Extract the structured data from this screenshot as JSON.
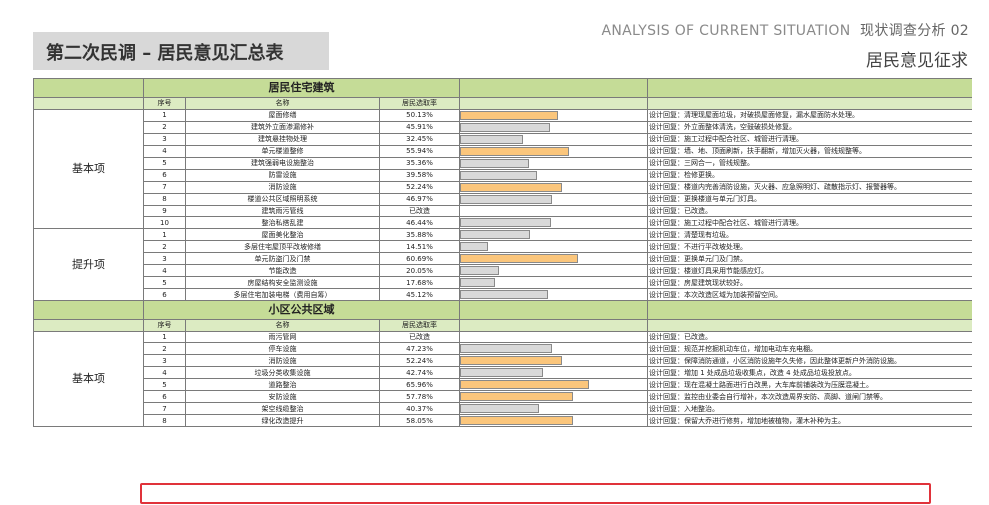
{
  "page": {
    "title": "第二次民调 – 居民意见汇总表",
    "header_en_prefix": "ANALYSIS OF CURRENT SITUATION",
    "header_en_suffix": "现状调查分析 02",
    "header_cn": "居民意见征求"
  },
  "colors": {
    "bar_high": "#fbc67c",
    "bar_low": "#d9d9d9",
    "section_bg": "#c5dc97",
    "highlight": "#e0323a"
  },
  "table": {
    "col_headers": {
      "index": "序号",
      "name": "名称",
      "rate": "居民选取率"
    },
    "sections": [
      {
        "title": "居民住宅建筑",
        "groups": [
          {
            "category": "基本项",
            "rows": [
              {
                "no": "1",
                "name": "屋面修缮",
                "rate_text": "50.13%",
                "rate": 50.13,
                "high": true,
                "note": "设计回复：清理现屋面垃圾，对破损屋面修复，漏水屋面防水处理。"
              },
              {
                "no": "2",
                "name": "建筑外立面渗漏修补",
                "rate_text": "45.91%",
                "rate": 45.91,
                "high": false,
                "note": "设计回复：外立面整体清洗，空鼓破损处修复。"
              },
              {
                "no": "3",
                "name": "建筑悬挂物处理",
                "rate_text": "32.45%",
                "rate": 32.45,
                "high": false,
                "note": "设计回复：施工过程中配合社区、城管进行清理。"
              },
              {
                "no": "4",
                "name": "单元楼道整修",
                "rate_text": "55.94%",
                "rate": 55.94,
                "high": true,
                "note": "设计回复：墙、地、顶面刷新，扶手翻新，增加灭火器，管线规整等。"
              },
              {
                "no": "5",
                "name": "建筑强弱电设施整治",
                "rate_text": "35.36%",
                "rate": 35.36,
                "high": false,
                "note": "设计回复：三网合一，管线规整。"
              },
              {
                "no": "6",
                "name": "防雷设施",
                "rate_text": "39.58%",
                "rate": 39.58,
                "high": false,
                "note": "设计回复：检修更换。"
              },
              {
                "no": "7",
                "name": "消防设施",
                "rate_text": "52.24%",
                "rate": 52.24,
                "high": true,
                "note": "设计回复：楼道内完善消防设施，灭火器、应急照明灯、疏散指示灯、报警器等。"
              },
              {
                "no": "8",
                "name": "楼道公共区域照明系统",
                "rate_text": "46.97%",
                "rate": 46.97,
                "high": false,
                "note": "设计回复：更换楼道与单元门灯具。"
              },
              {
                "no": "9",
                "name": "建筑雨污管线",
                "rate_text": "已改造",
                "rate": 0,
                "high": false,
                "note": "设计回复：已改造。"
              },
              {
                "no": "10",
                "name": "整治私搭乱建",
                "rate_text": "46.44%",
                "rate": 46.44,
                "high": false,
                "note": "设计回复：施工过程中配合社区、城管进行清理。"
              }
            ]
          },
          {
            "category": "提升项",
            "rows": [
              {
                "no": "1",
                "name": "屋面美化整治",
                "rate_text": "35.88%",
                "rate": 35.88,
                "high": false,
                "note": "设计回复：清楚现有垃圾。"
              },
              {
                "no": "2",
                "name": "多层住宅屋顶平改坡修缮",
                "rate_text": "14.51%",
                "rate": 14.51,
                "high": false,
                "note": "设计回复：不进行平改坡处理。"
              },
              {
                "no": "3",
                "name": "单元防盗门及门禁",
                "rate_text": "60.69%",
                "rate": 60.69,
                "high": true,
                "note": "设计回复：更换单元门及门禁。"
              },
              {
                "no": "4",
                "name": "节能改造",
                "rate_text": "20.05%",
                "rate": 20.05,
                "high": false,
                "note": "设计回复：楼道灯具采用节能感应灯。"
              },
              {
                "no": "5",
                "name": "房屋结构安全监测设施",
                "rate_text": "17.68%",
                "rate": 17.68,
                "high": false,
                "note": "设计回复：房屋建筑现状较好。"
              },
              {
                "no": "6",
                "name": "多层住宅加装电梯（费用自筹）",
                "rate_text": "45.12%",
                "rate": 45.12,
                "high": false,
                "note": "设计回复：本次改造区域为加装预留空间。"
              }
            ]
          }
        ]
      },
      {
        "title": "小区公共区域",
        "groups": [
          {
            "category": "基本项",
            "rows": [
              {
                "no": "1",
                "name": "雨污管网",
                "rate_text": "已改造",
                "rate": 0,
                "high": false,
                "note": "设计回复：已改造。"
              },
              {
                "no": "2",
                "name": "停车设施",
                "rate_text": "47.23%",
                "rate": 47.23,
                "high": false,
                "note": "设计回复：规范并挖掘机动车位，增加电动车充电棚。"
              },
              {
                "no": "3",
                "name": "消防设施",
                "rate_text": "52.24%",
                "rate": 52.24,
                "high": true,
                "note": "设计回复：保障消防通道，小区消防设施年久失修，因此整体更新户外消防设施。"
              },
              {
                "no": "4",
                "name": "垃圾分类收集设施",
                "rate_text": "42.74%",
                "rate": 42.74,
                "high": false,
                "note": "设计回复：増加 1 处成品垃圾收集点，改造 4 处成品垃圾投放点。"
              },
              {
                "no": "5",
                "name": "道路整治",
                "rate_text": "65.96%",
                "rate": 65.96,
                "high": true,
                "note": "设计回复：现在混凝土路面进行白改黑，大车库前铺装改为压膜混凝土。"
              },
              {
                "no": "6",
                "name": "安防设施",
                "rate_text": "57.78%",
                "rate": 57.78,
                "high": true,
                "note": "设计回复：监控由业委会自行增补，本次改造周界安防、高脚、道闸门禁等。"
              },
              {
                "no": "7",
                "name": "架空线缆整治",
                "rate_text": "40.37%",
                "rate": 40.37,
                "high": false,
                "note": "设计回复：入地整治。"
              },
              {
                "no": "8",
                "name": "绿化改造提升",
                "rate_text": "58.05%",
                "rate": 58.05,
                "high": true,
                "note": "设计回复：保留大乔进行修剪，增加地被植物，灌木补种为主。"
              }
            ]
          }
        ]
      }
    ]
  }
}
